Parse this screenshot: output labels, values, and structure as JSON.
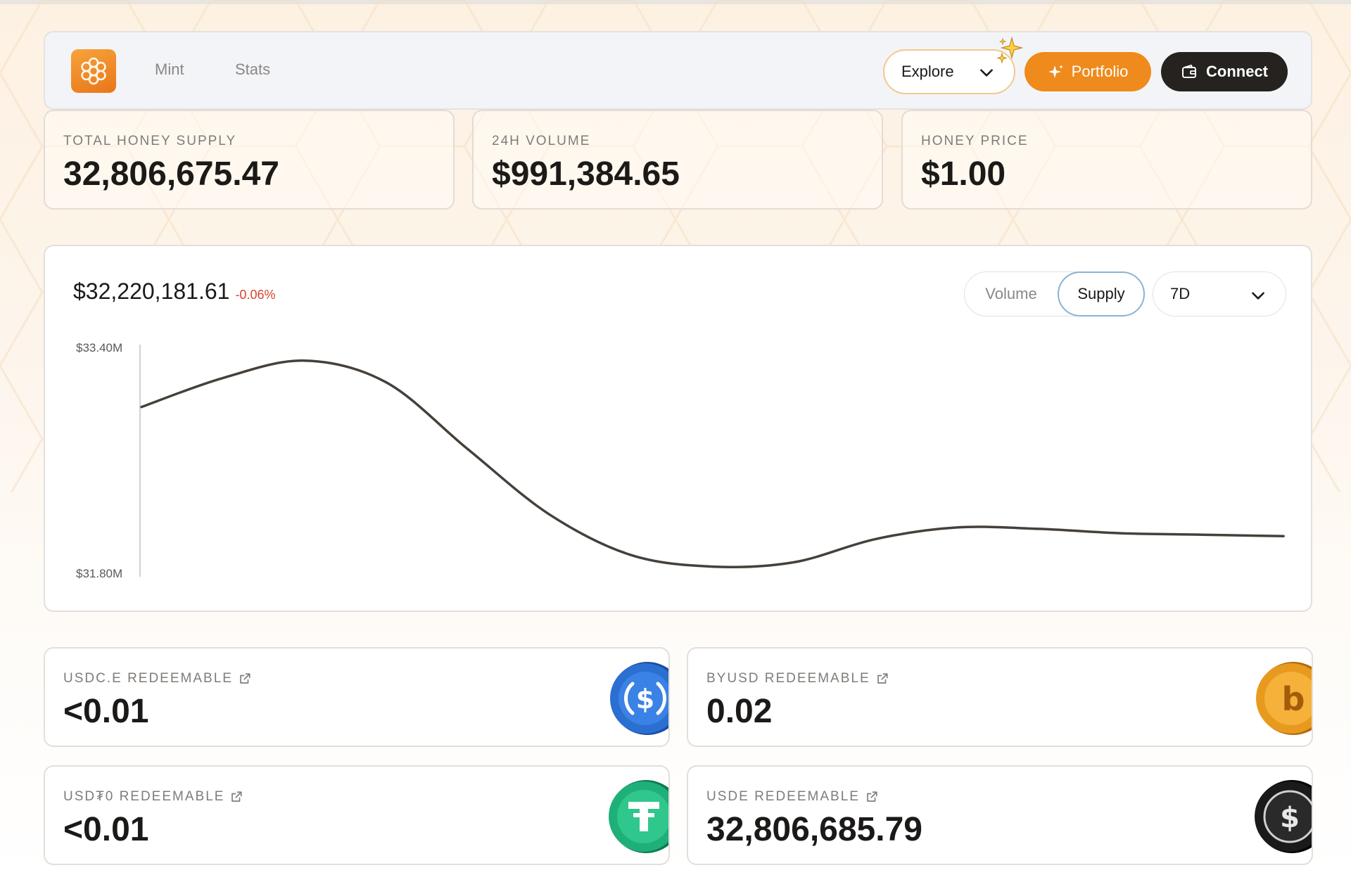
{
  "colors": {
    "accent": "#ef8a1c",
    "dark_button": "#25221f",
    "negative": "#d9432d",
    "line": "#46403b",
    "usdc": "#2b6fd1",
    "byusd": "#e89a1e",
    "usdt0": "#1fb07a",
    "usde": "#1a1a1a"
  },
  "nav": {
    "logo_icon": "honeycomb-flower-icon",
    "links": [
      "Mint",
      "Stats"
    ],
    "explore_label": "Explore",
    "portfolio_label": "Portfolio",
    "connect_label": "Connect"
  },
  "stats": [
    {
      "label": "TOTAL HONEY SUPPLY",
      "value": "32,806,675.47"
    },
    {
      "label": "24H VOLUME",
      "value": "$991,384.65"
    },
    {
      "label": "HONEY PRICE",
      "value": "$1.00"
    }
  ],
  "chart": {
    "headline_value": "$32,220,181.61",
    "change": "-0.06%",
    "toggle": [
      "Volume",
      "Supply"
    ],
    "active_toggle": "Supply",
    "period": "7D"
  },
  "chart_data": {
    "type": "line",
    "title": "",
    "xlabel": "",
    "ylabel": "",
    "ylim": [
      31.8,
      33.4
    ],
    "y_tick_labels": [
      "$33.40M",
      "$31.80M"
    ],
    "grid": false,
    "series": [
      {
        "values": [
          32.97,
          33.17,
          33.29,
          33.14,
          32.68,
          32.23,
          31.95,
          31.87,
          31.9,
          32.06,
          32.14,
          32.13,
          32.1,
          32.09,
          32.08
        ]
      }
    ]
  },
  "redeem": [
    {
      "label": "USDC.E REDEEMABLE",
      "value": "<0.01",
      "icon": "usdc-coin-icon"
    },
    {
      "label": "BYUSD REDEEMABLE",
      "value": "0.02",
      "icon": "byusd-coin-icon"
    },
    {
      "label": "USD₮0 REDEEMABLE",
      "value": "<0.01",
      "icon": "usdt0-coin-icon"
    },
    {
      "label": "USDE REDEEMABLE",
      "value": "32,806,685.79",
      "icon": "usde-coin-icon"
    }
  ]
}
